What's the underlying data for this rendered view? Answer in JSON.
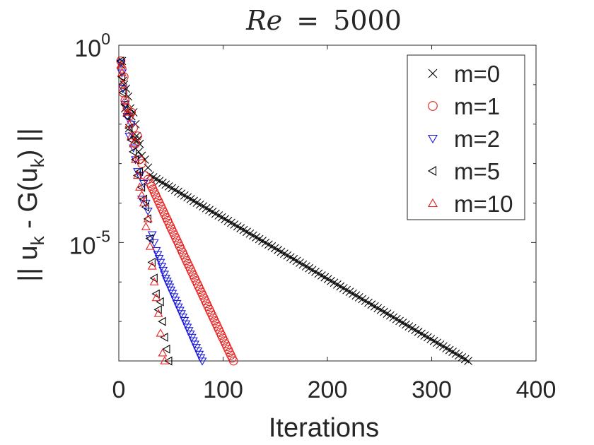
{
  "chart_data": {
    "type": "scatter",
    "title_math": {
      "lhs": "Re",
      "op": "=",
      "value": "5000"
    },
    "xlabel": "Iterations",
    "ylabel": {
      "pre": "|| u",
      "sub1": "k",
      "mid": " - G(u",
      "sub2": "k",
      "post": ") ||"
    },
    "xlim": [
      0,
      400
    ],
    "ylim_exp": [
      -8.0,
      0.0
    ],
    "y_scale": "log",
    "x_ticks": [
      {
        "value": 0,
        "label": "0"
      },
      {
        "value": 100,
        "label": "100"
      },
      {
        "value": 200,
        "label": "200"
      },
      {
        "value": 300,
        "label": "300"
      },
      {
        "value": 400,
        "label": "400"
      }
    ],
    "y_ticks": [
      {
        "exp": 0,
        "base": "10",
        "sup": "0"
      },
      {
        "exp": -5,
        "base": "10",
        "sup": "-5"
      }
    ],
    "legend_position": "top-right",
    "series": [
      {
        "name": "m=0",
        "marker": "x",
        "color": "#000000",
        "anchors": [
          [
            2,
            -0.5
          ],
          [
            3,
            -0.4
          ],
          [
            4,
            -0.9
          ],
          [
            5,
            -1.0
          ],
          [
            6,
            -1.6
          ],
          [
            7,
            -1.1
          ],
          [
            8,
            -1.7
          ],
          [
            9,
            -1.3
          ],
          [
            10,
            -2.1
          ],
          [
            11,
            -1.6
          ],
          [
            12,
            -1.8
          ],
          [
            13,
            -2.3
          ],
          [
            14,
            -1.7
          ],
          [
            15,
            -2.4
          ],
          [
            16,
            -2.0
          ],
          [
            17,
            -2.3
          ],
          [
            18,
            -2.4
          ],
          [
            19,
            -2.7
          ],
          [
            20,
            -2.5
          ],
          [
            22,
            -2.8
          ],
          [
            25,
            -2.9
          ],
          [
            28,
            -3.1
          ],
          [
            30,
            -3.3
          ],
          [
            335,
            -8.0
          ]
        ],
        "step": 3
      },
      {
        "name": "m=1",
        "marker": "circle",
        "color": "#e8201e",
        "anchors": [
          [
            2,
            -0.4
          ],
          [
            3,
            -0.6
          ],
          [
            4,
            -1.2
          ],
          [
            5,
            -0.8
          ],
          [
            6,
            -1.4
          ],
          [
            8,
            -1.6
          ],
          [
            10,
            -1.8
          ],
          [
            12,
            -1.7
          ],
          [
            14,
            -2.1
          ],
          [
            16,
            -2.5
          ],
          [
            18,
            -2.3
          ],
          [
            20,
            -2.9
          ],
          [
            22,
            -3.0
          ],
          [
            25,
            -3.3
          ],
          [
            28,
            -3.4
          ],
          [
            30,
            -3.5
          ],
          [
            110,
            -8.0
          ]
        ],
        "step": 1.3
      },
      {
        "name": "m=2",
        "marker": "triangle-down",
        "color": "#1a1adf",
        "anchors": [
          [
            2,
            -0.45
          ],
          [
            3,
            -0.7
          ],
          [
            4,
            -1.1
          ],
          [
            6,
            -1.5
          ],
          [
            8,
            -1.8
          ],
          [
            10,
            -2.3
          ],
          [
            12,
            -2.0
          ],
          [
            14,
            -2.6
          ],
          [
            16,
            -2.9
          ],
          [
            18,
            -3.2
          ],
          [
            20,
            -3.3
          ],
          [
            22,
            -3.9
          ],
          [
            24,
            -3.5
          ],
          [
            26,
            -4.0
          ],
          [
            28,
            -4.2
          ],
          [
            30,
            -4.9
          ],
          [
            32,
            -4.8
          ],
          [
            34,
            -5.0
          ],
          [
            36,
            -5.2
          ],
          [
            40,
            -5.5
          ],
          [
            45,
            -5.9
          ],
          [
            50,
            -6.2
          ],
          [
            60,
            -6.8
          ],
          [
            70,
            -7.4
          ],
          [
            80,
            -8.0
          ]
        ],
        "step": 1.4
      },
      {
        "name": "m=5",
        "marker": "triangle-left",
        "color": "#000000",
        "anchors": [
          [
            2,
            -0.4
          ],
          [
            3,
            -0.8
          ],
          [
            4,
            -1.2
          ],
          [
            6,
            -1.5
          ],
          [
            8,
            -1.8
          ],
          [
            10,
            -2.1
          ],
          [
            12,
            -2.4
          ],
          [
            14,
            -2.7
          ],
          [
            16,
            -2.9
          ],
          [
            18,
            -3.3
          ],
          [
            20,
            -3.2
          ],
          [
            22,
            -3.6
          ],
          [
            24,
            -3.9
          ],
          [
            26,
            -4.1
          ],
          [
            28,
            -4.4
          ],
          [
            30,
            -4.9
          ],
          [
            32,
            -5.5
          ],
          [
            34,
            -5.9
          ],
          [
            36,
            -6.3
          ],
          [
            38,
            -6.7
          ],
          [
            40,
            -6.5
          ],
          [
            42,
            -7.0
          ],
          [
            44,
            -7.4
          ],
          [
            46,
            -7.7
          ],
          [
            48,
            -8.0
          ]
        ],
        "step": 1.6
      },
      {
        "name": "m=10",
        "marker": "triangle-up",
        "color": "#e8201e",
        "anchors": [
          [
            2,
            -0.5
          ],
          [
            3,
            -0.7
          ],
          [
            4,
            -1.0
          ],
          [
            6,
            -1.4
          ],
          [
            8,
            -1.7
          ],
          [
            10,
            -2.0
          ],
          [
            12,
            -2.3
          ],
          [
            14,
            -2.5
          ],
          [
            16,
            -2.9
          ],
          [
            18,
            -3.3
          ],
          [
            20,
            -3.6
          ],
          [
            22,
            -3.8
          ],
          [
            24,
            -4.0
          ],
          [
            26,
            -4.6
          ],
          [
            28,
            -4.4
          ],
          [
            30,
            -5.1
          ],
          [
            32,
            -5.6
          ],
          [
            34,
            -6.0
          ],
          [
            36,
            -6.4
          ],
          [
            38,
            -6.8
          ],
          [
            40,
            -7.3
          ],
          [
            42,
            -7.8
          ],
          [
            44,
            -8.0
          ]
        ],
        "step": 1.7
      }
    ]
  }
}
